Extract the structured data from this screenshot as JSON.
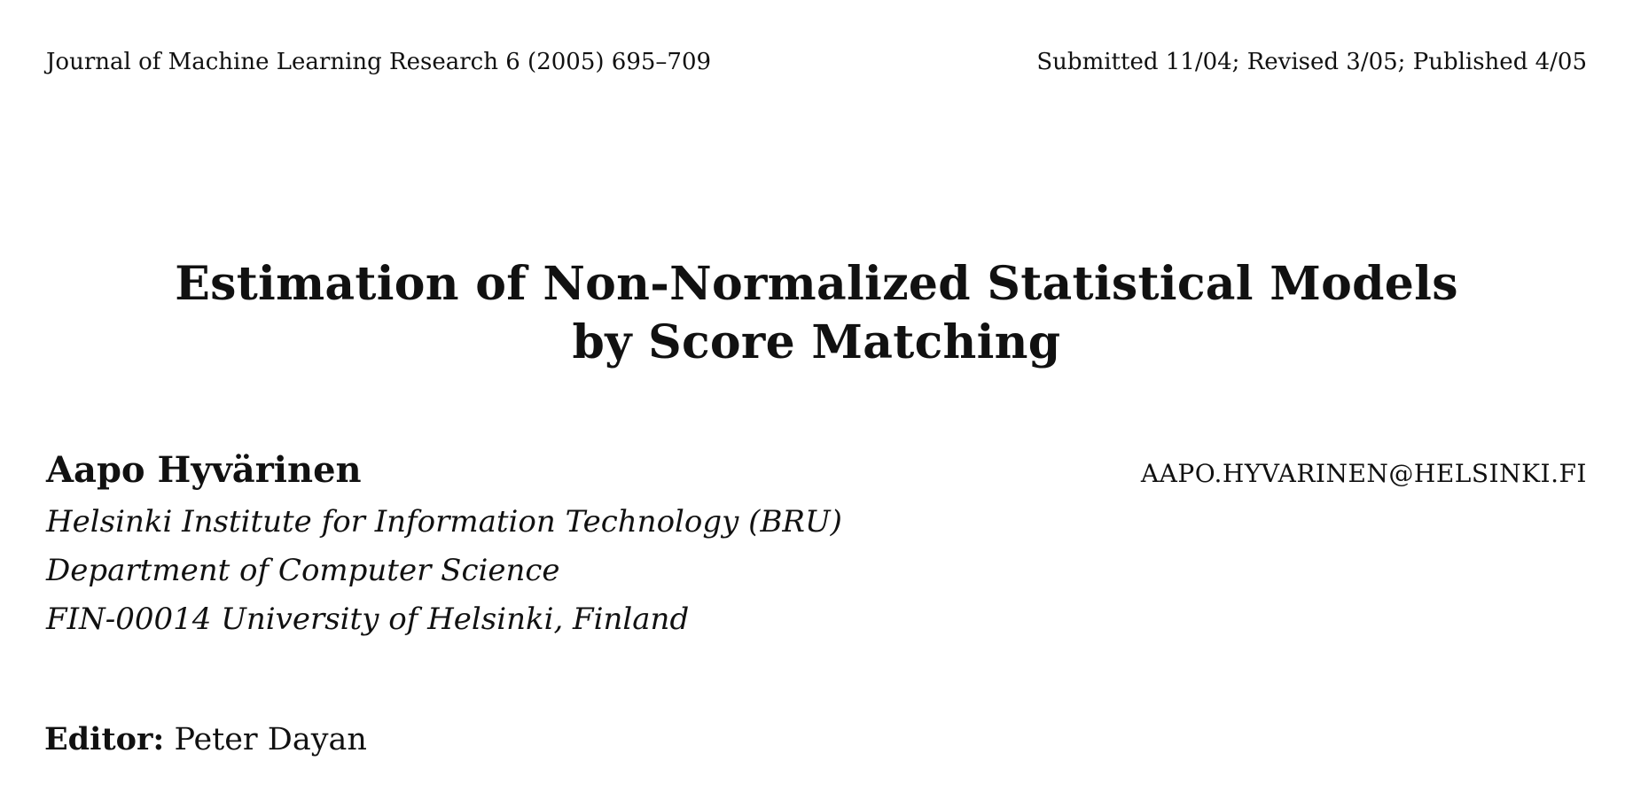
{
  "header": {
    "journal": "Journal of Machine Learning Research 6 (2005) 695–709",
    "history": "Submitted 11/04; Revised 3/05; Published 4/05"
  },
  "title": {
    "line1": "Estimation of Non-Normalized Statistical Models",
    "line2": "by Score Matching"
  },
  "author": {
    "name": "Aapo Hyvärinen",
    "email": "AAPO.HYVARINEN@HELSINKI.FI",
    "affiliations": [
      "Helsinki Institute for Information Technology (BRU)",
      "Department of Computer Science",
      "FIN-00014 University of Helsinki, Finland"
    ]
  },
  "editor": {
    "label": "Editor:",
    "name": "Peter Dayan"
  }
}
